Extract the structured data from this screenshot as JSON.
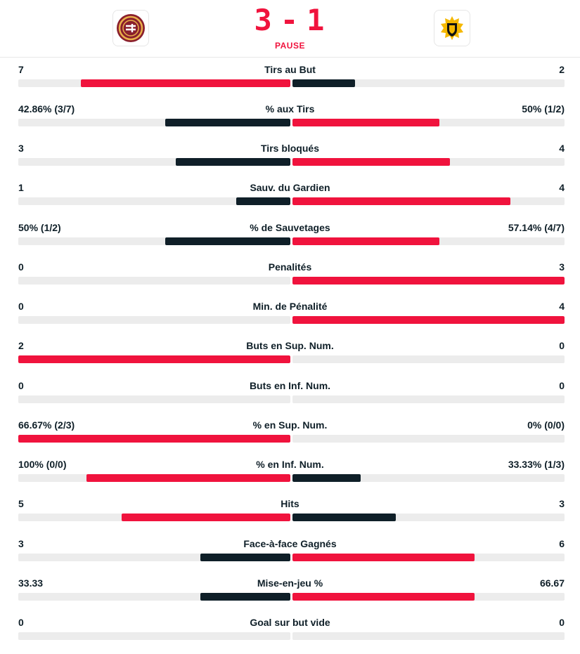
{
  "match": {
    "home_team": {
      "name": "Genève-Servette",
      "logo_icon": "geneve-servette-logo-icon"
    },
    "away_team": {
      "name": "Skellefteå",
      "logo_icon": "skelleftea-logo-icon"
    },
    "home_score": "3",
    "away_score": "1",
    "separator": "-",
    "status": "PAUSE"
  },
  "colors": {
    "accent": "#f0133d",
    "dark": "#0f1f28",
    "track": "#ececec"
  },
  "stats": [
    {
      "label": "Tirs au But",
      "home": "7",
      "away": "2",
      "home_fill": 0.77,
      "away_fill": 0.23,
      "leader": "home"
    },
    {
      "label": "% aux Tirs",
      "home": "42.86% (3/7)",
      "away": "50% (1/2)",
      "home_fill": 0.46,
      "away_fill": 0.54,
      "leader": "away"
    },
    {
      "label": "Tirs bloqués",
      "home": "3",
      "away": "4",
      "home_fill": 0.42,
      "away_fill": 0.58,
      "leader": "away"
    },
    {
      "label": "Sauv. du Gardien",
      "home": "1",
      "away": "4",
      "home_fill": 0.2,
      "away_fill": 0.8,
      "leader": "away"
    },
    {
      "label": "% de Sauvetages",
      "home": "50% (1/2)",
      "away": "57.14% (4/7)",
      "home_fill": 0.46,
      "away_fill": 0.54,
      "leader": "away"
    },
    {
      "label": "Penalités",
      "home": "0",
      "away": "3",
      "home_fill": 0,
      "away_fill": 1,
      "leader": "away"
    },
    {
      "label": "Min. de Pénalité",
      "home": "0",
      "away": "4",
      "home_fill": 0,
      "away_fill": 1,
      "leader": "away"
    },
    {
      "label": "Buts en Sup. Num.",
      "home": "2",
      "away": "0",
      "home_fill": 1,
      "away_fill": 0,
      "leader": "home"
    },
    {
      "label": "Buts en Inf. Num.",
      "home": "0",
      "away": "0",
      "home_fill": 0,
      "away_fill": 0,
      "leader": "none"
    },
    {
      "label": "% en Sup. Num.",
      "home": "66.67% (2/3)",
      "away": "0% (0/0)",
      "home_fill": 1,
      "away_fill": 0,
      "leader": "home"
    },
    {
      "label": "% en Inf. Num.",
      "home": "100% (0/0)",
      "away": "33.33% (1/3)",
      "home_fill": 0.75,
      "away_fill": 0.25,
      "leader": "home"
    },
    {
      "label": "Hits",
      "home": "5",
      "away": "3",
      "home_fill": 0.62,
      "away_fill": 0.38,
      "leader": "home"
    },
    {
      "label": "Face-à-face Gagnés",
      "home": "3",
      "away": "6",
      "home_fill": 0.33,
      "away_fill": 0.67,
      "leader": "away"
    },
    {
      "label": "Mise-en-jeu %",
      "home": "33.33",
      "away": "66.67",
      "home_fill": 0.33,
      "away_fill": 0.67,
      "leader": "away"
    },
    {
      "label": "Goal sur but vide",
      "home": "0",
      "away": "0",
      "home_fill": 0,
      "away_fill": 0,
      "leader": "none"
    }
  ]
}
